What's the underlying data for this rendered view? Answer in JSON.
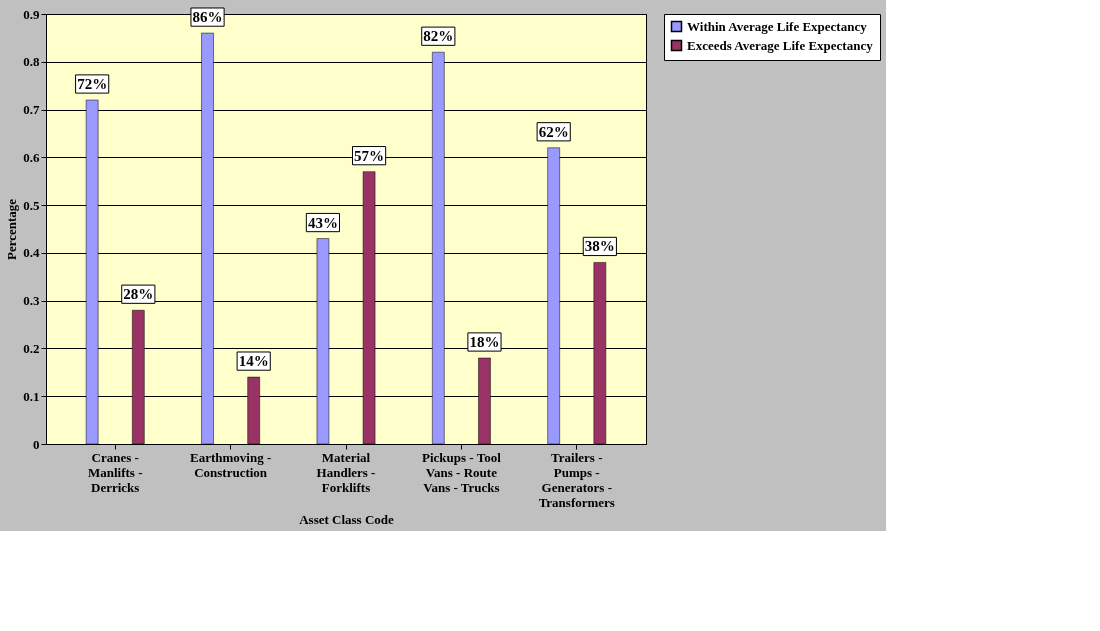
{
  "chart_data": {
    "type": "bar",
    "xlabel": "Asset Class Code",
    "ylabel": "Percentage",
    "categories": [
      "Cranes - Manlifts - Derricks",
      "Earthmoving - Construction",
      "Material Handlers - Forklifts",
      "Pickups - Tool Vans - Route Vans - Trucks",
      "Trailers - Pumps - Generators - Transformers"
    ],
    "series": [
      {
        "name": "Within Average Life Expectancy",
        "color": "#9999ff",
        "values": [
          0.72,
          0.86,
          0.43,
          0.82,
          0.62
        ],
        "value_labels": [
          "72%",
          "86%",
          "43%",
          "82%",
          "62%"
        ]
      },
      {
        "name": "Exceeds Average Life Expectancy",
        "color": "#993366",
        "values": [
          0.28,
          0.14,
          0.57,
          0.18,
          0.38
        ],
        "value_labels": [
          "28%",
          "14%",
          "57%",
          "18%",
          "38%"
        ]
      }
    ],
    "ylim": [
      0,
      0.9
    ],
    "yticks": [
      0,
      0.1,
      0.2,
      0.3,
      0.4,
      0.5,
      0.6,
      0.7,
      0.8,
      0.9
    ],
    "grid": "y",
    "legend": "right"
  }
}
